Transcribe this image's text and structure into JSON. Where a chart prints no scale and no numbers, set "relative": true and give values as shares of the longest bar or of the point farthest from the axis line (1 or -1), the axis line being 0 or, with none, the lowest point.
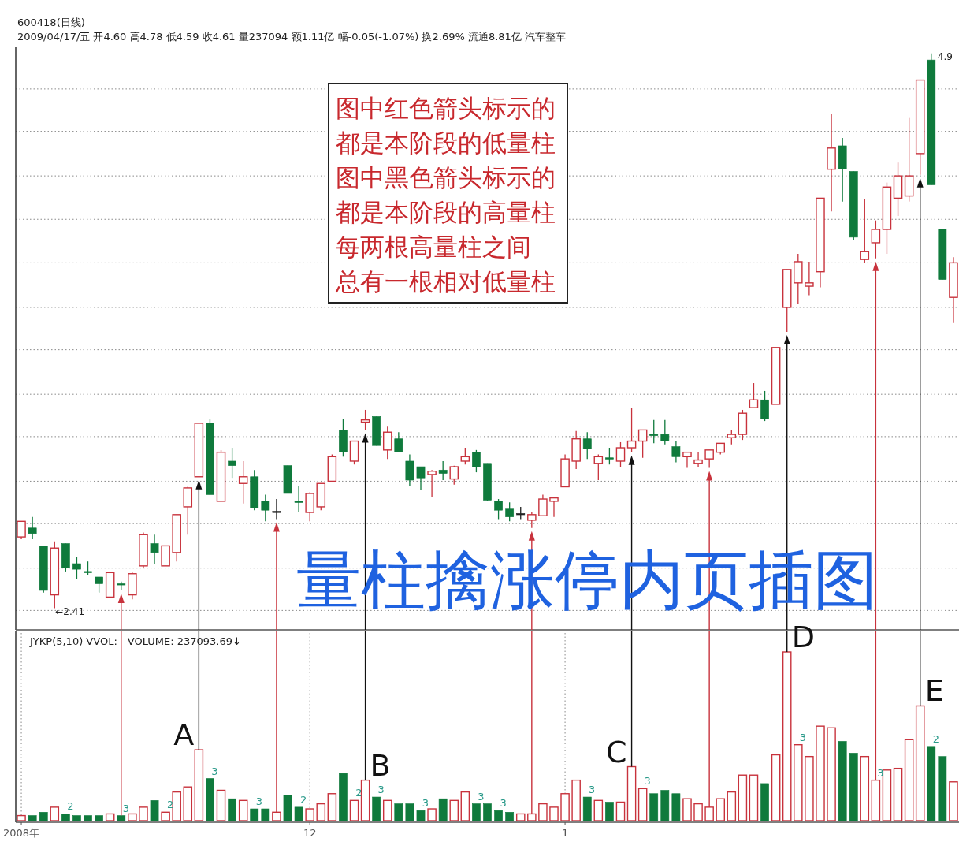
{
  "chart_data": [
    {
      "type": "candlestick",
      "title": "600418(日线)",
      "subtitle": "2009/04/17/五 开4.60 高4.78 低4.59 收4.61 量237094 额1.11亿 幅-0.05(-1.07%) 换2.69% 流通8.81亿 汽车整车",
      "categories": [
        null,
        null,
        null,
        null,
        null,
        null,
        null,
        null,
        null,
        null,
        null,
        null,
        null,
        null,
        null,
        null,
        null,
        null,
        null,
        null,
        null,
        null,
        null,
        null,
        null,
        null,
        null,
        null,
        null,
        null,
        null,
        null,
        null,
        null,
        null,
        null,
        null,
        null,
        null,
        null,
        null,
        null,
        null,
        null,
        null,
        null,
        null,
        null,
        null,
        null,
        null,
        null,
        null,
        null,
        null,
        null,
        null,
        null,
        null,
        null,
        null,
        null,
        null,
        null,
        null,
        null,
        null,
        null,
        null,
        null,
        null,
        null,
        null,
        null,
        null,
        null,
        null,
        null,
        null,
        null,
        null,
        null,
        null,
        null,
        null
      ],
      "ohlc": [
        [
          2.73,
          2.8,
          2.72,
          2.8
        ],
        [
          2.77,
          2.82,
          2.72,
          2.745
        ],
        [
          2.69,
          2.69,
          2.48,
          2.49
        ],
        [
          2.47,
          2.71,
          2.41,
          2.68
        ],
        [
          2.7,
          2.7,
          2.575,
          2.59
        ],
        [
          2.61,
          2.64,
          2.54,
          2.585
        ],
        [
          2.575,
          2.62,
          2.56,
          2.57
        ],
        [
          2.55,
          2.55,
          2.48,
          2.52
        ],
        [
          2.46,
          2.575,
          2.455,
          2.57
        ],
        [
          2.52,
          2.53,
          2.49,
          2.515
        ],
        [
          2.47,
          2.57,
          2.45,
          2.565
        ],
        [
          2.6,
          2.75,
          2.59,
          2.74
        ],
        [
          2.7,
          2.74,
          2.61,
          2.66
        ],
        [
          2.6,
          2.69,
          2.6,
          2.69
        ],
        [
          2.66,
          2.83,
          2.62,
          2.83
        ],
        [
          2.865,
          2.955,
          2.74,
          2.95
        ],
        [
          3.0,
          3.24,
          3.0,
          3.24
        ],
        [
          3.24,
          3.26,
          2.92,
          2.92
        ],
        [
          2.89,
          3.12,
          2.89,
          3.11
        ],
        [
          3.07,
          3.13,
          2.995,
          3.05
        ],
        [
          2.97,
          3.07,
          2.88,
          3.0
        ],
        [
          3.0,
          3.03,
          2.85,
          2.86
        ],
        [
          2.89,
          2.92,
          2.8,
          2.85
        ],
        [
          2.845,
          2.9,
          2.81,
          2.845
        ],
        [
          3.05,
          3.05,
          2.925,
          2.925
        ],
        [
          2.89,
          2.96,
          2.84,
          2.885
        ],
        [
          2.84,
          2.93,
          2.8,
          2.925
        ],
        [
          2.865,
          2.97,
          2.85,
          2.97
        ],
        [
          2.98,
          3.1,
          2.98,
          3.09
        ],
        [
          3.21,
          3.26,
          3.09,
          3.11
        ],
        [
          3.07,
          3.16,
          3.055,
          3.16
        ],
        [
          3.245,
          3.3,
          3.21,
          3.255
        ],
        [
          3.27,
          3.27,
          3.14,
          3.14
        ],
        [
          3.12,
          3.225,
          3.08,
          3.2
        ],
        [
          3.17,
          3.2,
          3.11,
          3.11
        ],
        [
          3.07,
          3.1,
          2.96,
          2.985
        ],
        [
          3.045,
          3.045,
          2.94,
          2.995
        ],
        [
          3.01,
          3.03,
          2.91,
          3.025
        ],
        [
          3.03,
          3.07,
          2.985,
          3.015
        ],
        [
          2.99,
          3.05,
          2.965,
          3.045
        ],
        [
          3.07,
          3.13,
          3.055,
          3.09
        ],
        [
          3.11,
          3.12,
          3.02,
          3.045
        ],
        [
          3.06,
          3.06,
          2.89,
          2.895
        ],
        [
          2.89,
          2.9,
          2.81,
          2.85
        ],
        [
          2.855,
          2.885,
          2.8,
          2.82
        ],
        [
          2.835,
          2.865,
          2.81,
          2.835
        ],
        [
          2.805,
          2.84,
          2.77,
          2.83
        ],
        [
          2.825,
          2.92,
          2.825,
          2.9
        ],
        [
          2.89,
          2.905,
          2.82,
          2.905
        ],
        [
          2.955,
          3.1,
          2.955,
          3.08
        ],
        [
          3.07,
          3.205,
          3.035,
          3.17
        ],
        [
          3.17,
          3.2,
          3.08,
          3.125
        ],
        [
          3.06,
          3.1,
          2.985,
          3.09
        ],
        [
          3.085,
          3.13,
          3.055,
          3.08
        ],
        [
          3.07,
          3.155,
          3.045,
          3.13
        ],
        [
          3.13,
          3.31,
          3.11,
          3.16
        ],
        [
          3.16,
          3.21,
          3.085,
          3.21
        ],
        [
          3.19,
          3.255,
          3.15,
          3.185
        ],
        [
          3.19,
          3.255,
          3.145,
          3.16
        ],
        [
          3.135,
          3.16,
          3.065,
          3.09
        ],
        [
          3.09,
          3.11,
          3.04,
          3.11
        ],
        [
          3.06,
          3.11,
          3.045,
          3.075
        ],
        [
          3.08,
          3.12,
          3.04,
          3.12
        ],
        [
          3.11,
          3.15,
          3.1,
          3.15
        ],
        [
          3.175,
          3.21,
          3.145,
          3.19
        ],
        [
          3.19,
          3.3,
          3.165,
          3.285
        ],
        [
          3.31,
          3.42,
          3.31,
          3.345
        ],
        [
          3.345,
          3.385,
          3.25,
          3.26
        ],
        [
          3.325,
          3.58,
          3.325,
          3.58
        ],
        [
          3.76,
          3.93,
          3.65,
          3.93
        ],
        [
          3.87,
          4.0,
          3.775,
          3.965
        ],
        [
          3.855,
          3.965,
          3.815,
          3.87
        ],
        [
          3.92,
          4.25,
          3.85,
          4.25
        ],
        [
          4.38,
          4.63,
          4.19,
          4.475
        ],
        [
          4.485,
          4.52,
          4.235,
          4.38
        ],
        [
          4.37,
          4.37,
          4.06,
          4.075
        ],
        [
          3.975,
          4.245,
          3.96,
          4.01
        ],
        [
          4.05,
          4.15,
          3.98,
          4.11
        ],
        [
          4.11,
          4.32,
          4.0,
          4.3
        ],
        [
          4.25,
          4.41,
          4.17,
          4.35
        ],
        [
          4.26,
          4.61,
          4.235,
          4.35
        ],
        [
          4.45,
          4.78,
          4.355,
          4.78
        ],
        [
          4.87,
          4.9,
          4.31,
          4.31
        ],
        [
          4.11,
          4.11,
          3.885,
          3.885
        ],
        [
          3.805,
          3.985,
          3.69,
          3.96
        ]
      ],
      "colors": [
        "#c8323c",
        "#0f7a3c",
        "#0f7a3c",
        "#c8323c",
        "#0f7a3c",
        "#0f7a3c",
        "#0f7a3c",
        "#0f7a3c",
        "#c8323c",
        "#0f7a3c",
        "#c8323c",
        "#c8323c",
        "#0f7a3c",
        "#c8323c",
        "#c8323c",
        "#c8323c",
        "#c8323c",
        "#0f7a3c",
        "#c8323c",
        "#0f7a3c",
        "#c8323c",
        "#0f7a3c",
        "#0f7a3c",
        "#222222",
        "#0f7a3c",
        "#0f7a3c",
        "#c8323c",
        "#c8323c",
        "#c8323c",
        "#0f7a3c",
        "#c8323c",
        "#c8323c",
        "#0f7a3c",
        "#c8323c",
        "#0f7a3c",
        "#0f7a3c",
        "#0f7a3c",
        "#c8323c",
        "#0f7a3c",
        "#c8323c",
        "#c8323c",
        "#0f7a3c",
        "#0f7a3c",
        "#0f7a3c",
        "#0f7a3c",
        "#222222",
        "#c8323c",
        "#c8323c",
        "#c8323c",
        "#c8323c",
        "#c8323c",
        "#0f7a3c",
        "#c8323c",
        "#0f7a3c",
        "#c8323c",
        "#c8323c",
        "#c8323c",
        "#0f7a3c",
        "#0f7a3c",
        "#0f7a3c",
        "#c8323c",
        "#c8323c",
        "#c8323c",
        "#c8323c",
        "#c8323c",
        "#c8323c",
        "#c8323c",
        "#0f7a3c",
        "#c8323c",
        "#c8323c",
        "#c8323c",
        "#c8323c",
        "#c8323c",
        "#c8323c",
        "#0f7a3c",
        "#0f7a3c",
        "#c8323c",
        "#c8323c",
        "#c8323c",
        "#c8323c",
        "#c8323c",
        "#c8323c",
        "#0f7a3c",
        "#0f7a3c",
        "#c8323c"
      ],
      "ylim": [
        2.32,
        4.92
      ],
      "yticks": [
        {
          "value": 2.4,
          "label": null
        },
        {
          "value": 2.59,
          "label": null
        },
        {
          "value": 2.79,
          "label": null
        },
        {
          "value": 2.98,
          "label": null
        },
        {
          "value": 3.18,
          "label": null
        },
        {
          "value": 3.37,
          "label": null
        },
        {
          "value": 3.57,
          "label": null
        },
        {
          "value": 3.76,
          "label": null
        },
        {
          "value": 3.96,
          "label": null
        },
        {
          "value": 4.155,
          "label": null
        },
        {
          "value": 4.35,
          "label": null
        },
        {
          "value": 4.55,
          "label": null
        },
        {
          "value": 4.74,
          "label": null
        }
      ],
      "tick_labels": false,
      "grid": "y",
      "annotations": [
        "图中红色箭头标示的",
        "都是本阶段的低量柱",
        "图中黑色箭头标示的",
        "都是本阶段的高量柱",
        "每两根高量柱之间",
        "总有一根相对低量柱",
        "量柱擒涨停内页插图",
        "←2.41",
        "4.9"
      ]
    },
    {
      "type": "bar",
      "title": "JYKP(5,10)  VVOL: -  VOLUME: 237093.69↓",
      "categories": [
        "2008年",
        null,
        null,
        null,
        null,
        null,
        null,
        null,
        null,
        null,
        null,
        null,
        null,
        null,
        null,
        null,
        null,
        null,
        null,
        null,
        null,
        null,
        null,
        null,
        null,
        null,
        "12",
        null,
        null,
        null,
        null,
        null,
        null,
        null,
        null,
        null,
        null,
        null,
        null,
        null,
        null,
        null,
        null,
        null,
        null,
        null,
        null,
        null,
        null,
        "1",
        null,
        null,
        null,
        null,
        null,
        null,
        null,
        null,
        null,
        null,
        null,
        null,
        null,
        null,
        null,
        null,
        null,
        null,
        null,
        null,
        null,
        null,
        null,
        null,
        null,
        null,
        null,
        null,
        null,
        null,
        null,
        null,
        null,
        null,
        null
      ],
      "values": [
        0.03,
        0.03,
        0.05,
        0.08,
        0.04,
        0.03,
        0.03,
        0.03,
        0.04,
        0.03,
        0.04,
        0.08,
        0.12,
        0.05,
        0.17,
        0.2,
        0.42,
        0.25,
        0.18,
        0.13,
        0.12,
        0.07,
        0.07,
        0.05,
        0.15,
        0.08,
        0.07,
        0.1,
        0.16,
        0.28,
        0.12,
        0.24,
        0.14,
        0.12,
        0.1,
        0.1,
        0.06,
        0.07,
        0.13,
        0.12,
        0.17,
        0.1,
        0.1,
        0.06,
        0.05,
        0.04,
        0.04,
        0.1,
        0.08,
        0.16,
        0.24,
        0.14,
        0.12,
        0.11,
        0.11,
        0.32,
        0.19,
        0.16,
        0.18,
        0.16,
        0.13,
        0.1,
        0.08,
        0.13,
        0.17,
        0.27,
        0.27,
        0.22,
        0.39,
        1,
        0.45,
        0.38,
        0.56,
        0.55,
        0.47,
        0.4,
        0.38,
        0.24,
        0.3,
        0.31,
        0.48,
        0.68,
        0.44,
        0.38,
        0.23
      ],
      "colors": [
        "#c8323c",
        "#0f7a3c",
        "#0f7a3c",
        "#c8323c",
        "#0f7a3c",
        "#0f7a3c",
        "#0f7a3c",
        "#0f7a3c",
        "#c8323c",
        "#0f7a3c",
        "#c8323c",
        "#c8323c",
        "#0f7a3c",
        "#c8323c",
        "#c8323c",
        "#c8323c",
        "#c8323c",
        "#0f7a3c",
        "#c8323c",
        "#0f7a3c",
        "#c8323c",
        "#0f7a3c",
        "#0f7a3c",
        "#c8323c",
        "#0f7a3c",
        "#0f7a3c",
        "#c8323c",
        "#c8323c",
        "#c8323c",
        "#0f7a3c",
        "#c8323c",
        "#c8323c",
        "#0f7a3c",
        "#c8323c",
        "#0f7a3c",
        "#0f7a3c",
        "#0f7a3c",
        "#c8323c",
        "#0f7a3c",
        "#c8323c",
        "#c8323c",
        "#0f7a3c",
        "#0f7a3c",
        "#0f7a3c",
        "#0f7a3c",
        "#c8323c",
        "#c8323c",
        "#c8323c",
        "#c8323c",
        "#c8323c",
        "#c8323c",
        "#0f7a3c",
        "#c8323c",
        "#0f7a3c",
        "#c8323c",
        "#c8323c",
        "#c8323c",
        "#0f7a3c",
        "#0f7a3c",
        "#0f7a3c",
        "#c8323c",
        "#c8323c",
        "#c8323c",
        "#c8323c",
        "#c8323c",
        "#c8323c",
        "#c8323c",
        "#0f7a3c",
        "#c8323c",
        "#c8323c",
        "#c8323c",
        "#c8323c",
        "#c8323c",
        "#c8323c",
        "#0f7a3c",
        "#0f7a3c",
        "#c8323c",
        "#c8323c",
        "#c8323c",
        "#c8323c",
        "#c8323c",
        "#c8323c",
        "#0f7a3c",
        "#0f7a3c",
        "#c8323c"
      ],
      "relative": true,
      "tick_labels": "x",
      "grid": "x",
      "annotations": [
        "2",
        "3",
        "2",
        "3",
        "3",
        "2",
        "2",
        "3",
        "3",
        "3",
        "3",
        "3",
        "3",
        "3",
        "3",
        "2",
        "A",
        "B",
        "C",
        "D",
        "E"
      ]
    }
  ]
}
